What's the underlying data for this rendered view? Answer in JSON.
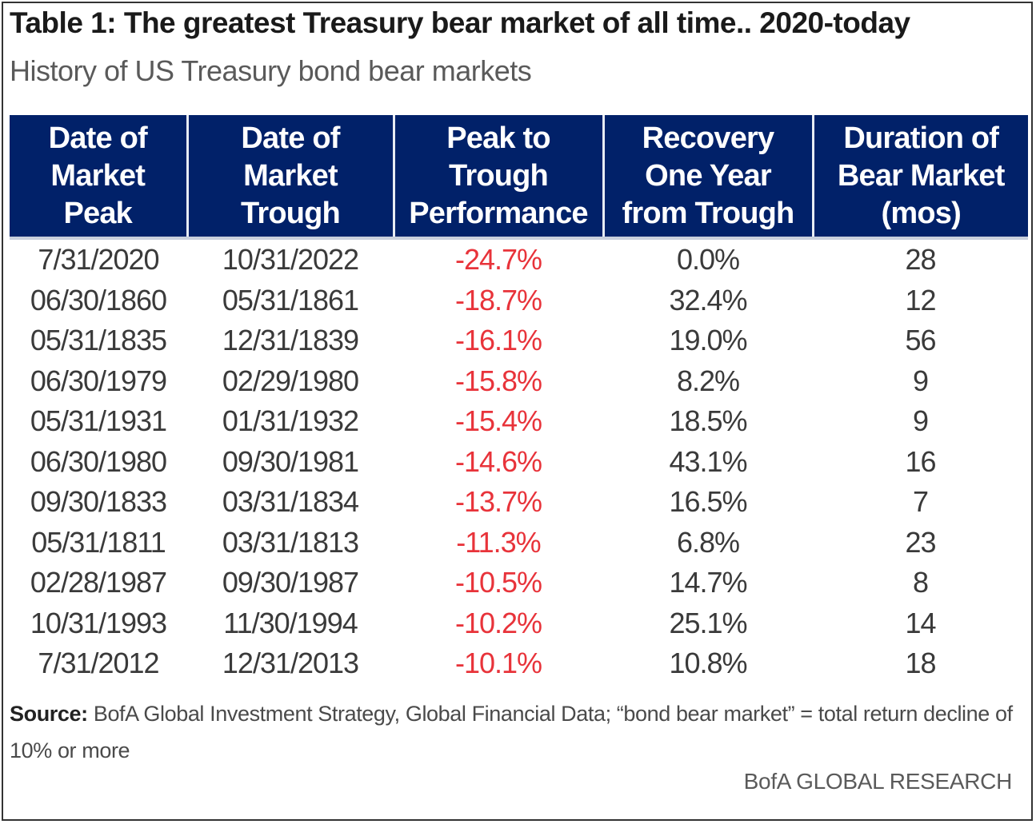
{
  "title": "Table 1: The greatest Treasury bear market of all time.. 2020-today",
  "subtitle": "History of US Treasury bond bear markets",
  "colors": {
    "header_bg": "#012169",
    "header_text": "#ffffff",
    "negative": "#e8333a",
    "body_text": "#3a3a3a"
  },
  "chart_data": {
    "type": "table",
    "title": "Table 1: The greatest Treasury bear market of all time.. 2020-today",
    "subtitle": "History of US Treasury bond bear markets",
    "columns": [
      [
        "Date of",
        "Market",
        "Peak"
      ],
      [
        "Date of",
        "Market",
        "Trough"
      ],
      [
        "Peak to",
        "Trough",
        "Performance"
      ],
      [
        "Recovery",
        "One Year",
        "from Trough"
      ],
      [
        "Duration of",
        "Bear Market",
        "(mos)"
      ]
    ],
    "rows": [
      [
        "7/31/2020",
        "10/31/2022",
        "-24.7%",
        "0.0%",
        "28"
      ],
      [
        "06/30/1860",
        "05/31/1861",
        "-18.7%",
        "32.4%",
        "12"
      ],
      [
        "05/31/1835",
        "12/31/1839",
        "-16.1%",
        "19.0%",
        "56"
      ],
      [
        "06/30/1979",
        "02/29/1980",
        "-15.8%",
        "8.2%",
        "9"
      ],
      [
        "05/31/1931",
        "01/31/1932",
        "-15.4%",
        "18.5%",
        "9"
      ],
      [
        "06/30/1980",
        "09/30/1981",
        "-14.6%",
        "43.1%",
        "16"
      ],
      [
        "09/30/1833",
        "03/31/1834",
        "-13.7%",
        "16.5%",
        "7"
      ],
      [
        "05/31/1811",
        "03/31/1813",
        "-11.3%",
        "6.8%",
        "23"
      ],
      [
        "02/28/1987",
        "09/30/1987",
        "-10.5%",
        "14.7%",
        "8"
      ],
      [
        "10/31/1993",
        "11/30/1994",
        "-10.2%",
        "25.1%",
        "14"
      ],
      [
        "7/31/2012",
        "12/31/2013",
        "-10.1%",
        "10.8%",
        "18"
      ]
    ]
  },
  "source": {
    "label": "Source:",
    "text": " BofA Global Investment Strategy, Global Financial Data; “bond bear market” = total return decline of 10% or more"
  },
  "brand": "BofA GLOBAL RESEARCH"
}
